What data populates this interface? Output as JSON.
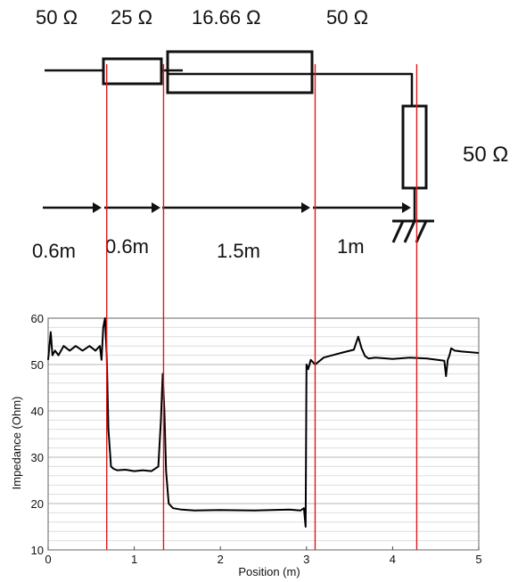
{
  "diagram": {
    "impedance_labels": [
      "50 Ω",
      "25 Ω",
      "16.66 Ω",
      "50 Ω"
    ],
    "load_label": "50 Ω",
    "length_labels": [
      "0.6m",
      "0.6m",
      "1.5m",
      "1m"
    ]
  },
  "chart_data": {
    "type": "line",
    "xlabel": "Position (m)",
    "ylabel": "Impedance (Ohm)",
    "xlim": [
      0,
      5
    ],
    "ylim": [
      10,
      60
    ],
    "xticks": [
      "0",
      "1",
      "2",
      "3",
      "4",
      "5"
    ],
    "yticks": [
      "10",
      "20",
      "30",
      "40",
      "50",
      "60"
    ],
    "grid": true,
    "line_color": "#000000",
    "marker_color": "#e0191b",
    "markers_x": [
      0.68,
      1.34,
      3.1,
      4.28
    ],
    "series": [
      {
        "x": [
          0.0,
          0.03,
          0.05,
          0.08,
          0.12,
          0.18,
          0.25,
          0.32,
          0.4,
          0.48,
          0.55,
          0.6,
          0.62,
          0.64,
          0.66,
          0.68,
          0.7,
          0.73,
          0.76,
          0.8,
          0.9,
          1.0,
          1.1,
          1.2,
          1.28,
          1.31,
          1.33,
          1.35,
          1.37,
          1.4,
          1.45,
          1.55,
          1.7,
          2.0,
          2.4,
          2.8,
          2.93,
          2.97,
          2.99,
          3.0,
          3.02,
          3.05,
          3.1,
          3.2,
          3.4,
          3.55,
          3.6,
          3.64,
          3.68,
          3.72,
          3.8,
          4.0,
          4.2,
          4.4,
          4.6,
          4.62,
          4.64,
          4.66,
          4.68,
          4.72,
          4.8,
          5.0
        ],
        "y": [
          51,
          57,
          52,
          53,
          52,
          54,
          53,
          54,
          53,
          54,
          53,
          54,
          51,
          58,
          60,
          52,
          36,
          28,
          27.5,
          27.2,
          27.3,
          27,
          27.2,
          27,
          28,
          38,
          48,
          40,
          27,
          20,
          19,
          18.7,
          18.5,
          18.6,
          18.5,
          18.7,
          18.5,
          19,
          15,
          50,
          49,
          51,
          50,
          51.5,
          52.5,
          53.2,
          56,
          53.5,
          51.8,
          51.3,
          51.5,
          51.2,
          51.5,
          51.3,
          50.8,
          47.5,
          51,
          52,
          53.5,
          53,
          52.8,
          52.5
        ]
      }
    ]
  }
}
